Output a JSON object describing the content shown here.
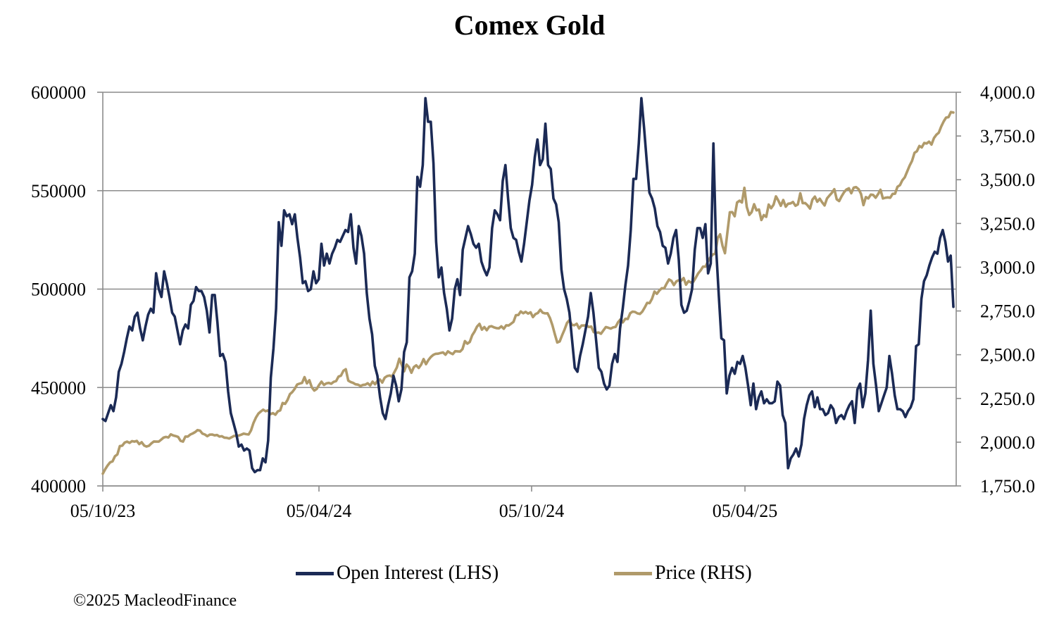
{
  "chart_data": {
    "type": "line",
    "title": "Comex Gold",
    "x_tick_labels": [
      "05/10/23",
      "05/04/24",
      "05/10/24",
      "05/04/25"
    ],
    "y_left": {
      "ticks": [
        "400000",
        "450000",
        "500000",
        "550000",
        "600000"
      ],
      "range": [
        400000,
        600000
      ]
    },
    "y_right": {
      "ticks": [
        "1,750.0",
        "2,000.0",
        "2,250.0",
        "2,500.0",
        "2,750.0",
        "3,000.0",
        "3,250.0",
        "3,500.0",
        "3,750.0",
        "4,000.0"
      ],
      "range": [
        1750,
        4000
      ]
    },
    "grid": "horizontal",
    "legend_position": "bottom",
    "series": [
      {
        "name": "Open Interest (LHS)",
        "axis": "left",
        "color": "#1b2a55",
        "x_range": [
          "2023-10-05",
          "2025-10-03"
        ],
        "values": [
          434000,
          433000,
          437000,
          441000,
          438000,
          445000,
          458000,
          462000,
          468000,
          475000,
          481000,
          479000,
          486000,
          488000,
          480000,
          474000,
          481000,
          487000,
          490000,
          488000,
          508000,
          500000,
          496000,
          509000,
          503000,
          496000,
          488000,
          486000,
          479000,
          472000,
          479000,
          482000,
          480000,
          492000,
          494000,
          501000,
          499000,
          499000,
          496000,
          489000,
          478000,
          497000,
          497000,
          483000,
          466000,
          467000,
          463000,
          448000,
          437000,
          432000,
          427000,
          420000,
          421000,
          418000,
          419000,
          418000,
          409000,
          407000,
          408000,
          408000,
          414000,
          412000,
          423000,
          455000,
          470000,
          490000,
          534000,
          522000,
          540000,
          537000,
          538000,
          533000,
          538000,
          526000,
          516000,
          503000,
          504000,
          499000,
          500000,
          509000,
          503000,
          505000,
          523000,
          512000,
          518000,
          513000,
          518000,
          521000,
          525000,
          524000,
          527000,
          530000,
          529000,
          538000,
          521000,
          513000,
          532000,
          527000,
          518000,
          498000,
          485000,
          477000,
          461000,
          456000,
          445000,
          437000,
          434000,
          441000,
          447000,
          456000,
          451000,
          443000,
          449000,
          468000,
          473000,
          506000,
          509000,
          518000,
          557000,
          552000,
          563000,
          597000,
          585000,
          585000,
          564000,
          524000,
          506000,
          511000,
          498000,
          490000,
          479000,
          485000,
          500000,
          505000,
          497000,
          520000,
          526000,
          532000,
          528000,
          523000,
          521000,
          523000,
          514000,
          510000,
          507000,
          511000,
          531000,
          540000,
          538000,
          535000,
          555000,
          563000,
          546000,
          531000,
          526000,
          525000,
          519000,
          514000,
          523000,
          534000,
          545000,
          553000,
          567000,
          576000,
          563000,
          566000,
          584000,
          563000,
          561000,
          546000,
          543000,
          534000,
          510000,
          500000,
          495000,
          488000,
          474000,
          460000,
          458000,
          466000,
          472000,
          479000,
          486000,
          498000,
          488000,
          474000,
          460000,
          458000,
          452000,
          449000,
          451000,
          462000,
          467000,
          463000,
          480000,
          490000,
          502000,
          512000,
          530000,
          556000,
          556000,
          574000,
          597000,
          582000,
          565000,
          549000,
          546000,
          541000,
          532000,
          529000,
          522000,
          521000,
          513000,
          518000,
          526000,
          530000,
          515000,
          492000,
          488000,
          489000,
          494000,
          500000,
          520000,
          531000,
          531000,
          526000,
          533000,
          508000,
          513000,
          574000,
          521000,
          497000,
          475000,
          474000,
          447000,
          456000,
          460000,
          457000,
          463000,
          462000,
          466000,
          460000,
          451000,
          441000,
          452000,
          439000,
          445000,
          448000,
          442000,
          444000,
          442000,
          442000,
          443000,
          453000,
          451000,
          436000,
          432000,
          409000,
          414000,
          416000,
          419000,
          415000,
          421000,
          434000,
          441000,
          446000,
          448000,
          440000,
          445000,
          439000,
          439000,
          436000,
          437000,
          441000,
          439000,
          432000,
          435000,
          436000,
          434000,
          438000,
          441000,
          443000,
          432000,
          449000,
          452000,
          440000,
          447000,
          464000,
          489000,
          462000,
          451000,
          438000,
          442000,
          446000,
          450000,
          466000,
          457000,
          446000,
          439000,
          439000,
          438000,
          435000,
          438000,
          440000,
          444000,
          471000,
          472000,
          495000,
          504000,
          507000,
          512000,
          516000,
          519000,
          518000,
          526000,
          530000,
          524000,
          514000,
          517000,
          491000
        ]
      },
      {
        "name": "Price (RHS)",
        "axis": "right",
        "color": "#b09a6a",
        "x_range": [
          "2023-10-05",
          "2025-10-03"
        ],
        "values": [
          1820,
          1846,
          1867,
          1885,
          1890,
          1920,
          1930,
          1978,
          1980,
          1998,
          2003,
          1996,
          2006,
          2003,
          2007,
          1989,
          2000,
          1981,
          1975,
          1980,
          1993,
          2004,
          2003,
          2003,
          2014,
          2026,
          2030,
          2027,
          2045,
          2038,
          2035,
          2030,
          2008,
          2003,
          2032,
          2032,
          2044,
          2050,
          2058,
          2069,
          2066,
          2049,
          2044,
          2034,
          2043,
          2044,
          2039,
          2041,
          2032,
          2034,
          2026,
          2025,
          2021,
          2028,
          2036,
          2036,
          2038,
          2043,
          2049,
          2046,
          2044,
          2067,
          2110,
          2140,
          2163,
          2175,
          2186,
          2177,
          2182,
          2160,
          2166,
          2157,
          2176,
          2182,
          2224,
          2219,
          2241,
          2275,
          2287,
          2306,
          2330,
          2335,
          2339,
          2372,
          2336,
          2354,
          2314,
          2295,
          2304,
          2327,
          2346,
          2327,
          2336,
          2339,
          2334,
          2345,
          2349,
          2375,
          2380,
          2408,
          2417,
          2352,
          2344,
          2339,
          2331,
          2329,
          2321,
          2327,
          2329,
          2337,
          2324,
          2346,
          2331,
          2351,
          2358,
          2341,
          2369,
          2378,
          2381,
          2375,
          2401,
          2427,
          2477,
          2443,
          2405,
          2444,
          2429,
          2397,
          2430,
          2439,
          2424,
          2443,
          2475,
          2446,
          2470,
          2487,
          2499,
          2505,
          2506,
          2510,
          2513,
          2500,
          2519,
          2510,
          2503,
          2520,
          2519,
          2518,
          2532,
          2578,
          2563,
          2573,
          2611,
          2633,
          2661,
          2676,
          2643,
          2658,
          2640,
          2660,
          2663,
          2656,
          2652,
          2651,
          2662,
          2648,
          2668,
          2667,
          2677,
          2688,
          2726,
          2727,
          2747,
          2737,
          2745,
          2735,
          2742,
          2715,
          2732,
          2738,
          2757,
          2740,
          2736,
          2737,
          2709,
          2669,
          2617,
          2570,
          2576,
          2611,
          2644,
          2681,
          2698,
          2671,
          2668,
          2677,
          2650,
          2667,
          2667,
          2669,
          2658,
          2661,
          2629,
          2625,
          2627,
          2620,
          2639,
          2658,
          2654,
          2649,
          2656,
          2659,
          2685,
          2702,
          2685,
          2705,
          2704,
          2737,
          2746,
          2744,
          2736,
          2733,
          2746,
          2770,
          2796,
          2795,
          2820,
          2861,
          2848,
          2867,
          2880,
          2879,
          2906,
          2930,
          2922,
          2898,
          2919,
          2926,
          2923,
          2938,
          2900,
          2921,
          2913,
          2917,
          2940,
          2965,
          2982,
          3004,
          3003,
          3034,
          3057,
          3073,
          3077,
          3166,
          3188,
          3123,
          3080,
          3197,
          3314,
          3315,
          3291,
          3370,
          3380,
          3370,
          3454,
          3344,
          3299,
          3315,
          3360,
          3325,
          3330,
          3270,
          3298,
          3288,
          3358,
          3337,
          3357,
          3405,
          3380,
          3351,
          3384,
          3346,
          3363,
          3365,
          3373,
          3351,
          3359,
          3423,
          3366,
          3367,
          3354,
          3335,
          3386,
          3404,
          3374,
          3392,
          3371,
          3353,
          3393,
          3410,
          3425,
          3446,
          3388,
          3378,
          3405,
          3428,
          3444,
          3451,
          3423,
          3455,
          3458,
          3446,
          3419,
          3355,
          3401,
          3393,
          3415,
          3413,
          3397,
          3417,
          3443,
          3393,
          3397,
          3399,
          3397,
          3419,
          3420,
          3460,
          3469,
          3497,
          3514,
          3547,
          3581,
          3608,
          3654,
          3663,
          3693,
          3685,
          3710,
          3707,
          3718,
          3701,
          3738,
          3757,
          3769,
          3804,
          3833,
          3855,
          3858,
          3887,
          3884
        ]
      }
    ]
  },
  "copyright": "©2025 MacleodFinance"
}
